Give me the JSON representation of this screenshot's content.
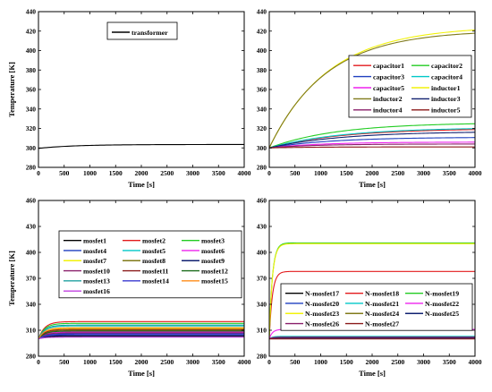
{
  "chart_data": [
    {
      "type": "line",
      "xlabel": "Time [s]",
      "ylabel": "Temperature [K]",
      "xlim": [
        0,
        4000
      ],
      "ylim": [
        280,
        440
      ],
      "xticks": [
        0,
        500,
        1000,
        1500,
        2000,
        2500,
        3000,
        3500,
        4000
      ],
      "yticks": [
        280,
        300,
        320,
        340,
        360,
        380,
        400,
        420,
        440
      ],
      "legend_position": "top-left",
      "legend_columns": 1,
      "series": [
        {
          "name": "transformer",
          "color": "#000000",
          "start": 299.5,
          "final": 303.5,
          "tau": 700
        }
      ]
    },
    {
      "type": "line",
      "xlabel": "Time [s]",
      "ylabel": "",
      "xlim": [
        0,
        4000
      ],
      "ylim": [
        280,
        440
      ],
      "xticks": [
        0,
        500,
        1000,
        1500,
        2000,
        2500,
        3000,
        3500,
        4000
      ],
      "yticks": [
        280,
        300,
        320,
        340,
        360,
        380,
        400,
        420,
        440
      ],
      "legend_position": "center-right",
      "legend_columns": 2,
      "series": [
        {
          "name": "capacitor1",
          "color": "#e31a1c",
          "start": 300,
          "final": 320,
          "tau": 1400
        },
        {
          "name": "capacitor2",
          "color": "#22cc22",
          "start": 300,
          "final": 326,
          "tau": 1300
        },
        {
          "name": "capacitor3",
          "color": "#1f3fbf",
          "start": 300,
          "final": 311,
          "tau": 1200
        },
        {
          "name": "capacitor4",
          "color": "#00c8c8",
          "start": 300,
          "final": 321,
          "tau": 1400
        },
        {
          "name": "capacitor5",
          "color": "#ee22ee",
          "start": 300,
          "final": 306,
          "tau": 1000
        },
        {
          "name": "inductor1",
          "color": "#f2f20a",
          "start": 300,
          "final": 425,
          "tau": 1150
        },
        {
          "name": "inductor2",
          "color": "#807a1a",
          "start": 300,
          "final": 421,
          "tau": 1100
        },
        {
          "name": "inductor3",
          "color": "#102070",
          "start": 300,
          "final": 317,
          "tau": 1400
        },
        {
          "name": "inductor4",
          "color": "#8a1f6a",
          "start": 300,
          "final": 304,
          "tau": 900
        },
        {
          "name": "inductor5",
          "color": "#8b1a1a",
          "start": 300,
          "final": 301,
          "tau": 800
        }
      ]
    },
    {
      "type": "line",
      "xlabel": "Time [s]",
      "ylabel": "Temperature [K]",
      "xlim": [
        0,
        4000
      ],
      "ylim": [
        280,
        460
      ],
      "xticks": [
        0,
        500,
        1000,
        1500,
        2000,
        2500,
        3000,
        3500,
        4000
      ],
      "yticks": [
        280,
        310,
        340,
        370,
        400,
        430,
        460
      ],
      "legend_position": "center-left",
      "legend_columns": 3,
      "series": [
        {
          "name": "mosfet1",
          "color": "#000000",
          "start": 300,
          "final": 303,
          "tau": 120
        },
        {
          "name": "mosfet2",
          "color": "#e31a1c",
          "start": 300,
          "final": 320,
          "tau": 120
        },
        {
          "name": "mosfet3",
          "color": "#22cc22",
          "start": 300,
          "final": 318,
          "tau": 120
        },
        {
          "name": "mosfet4",
          "color": "#1f3fbf",
          "start": 300,
          "final": 306,
          "tau": 120
        },
        {
          "name": "mosfet5",
          "color": "#00c8c8",
          "start": 300,
          "final": 315,
          "tau": 120
        },
        {
          "name": "mosfet6",
          "color": "#ee22ee",
          "start": 300,
          "final": 308,
          "tau": 120
        },
        {
          "name": "mosfet7",
          "color": "#f2f20a",
          "start": 300,
          "final": 312,
          "tau": 120
        },
        {
          "name": "mosfet8",
          "color": "#807a1a",
          "start": 300,
          "final": 310,
          "tau": 120
        },
        {
          "name": "mosfet9",
          "color": "#102070",
          "start": 300,
          "final": 304,
          "tau": 120
        },
        {
          "name": "mosfet10",
          "color": "#8a1f6a",
          "start": 300,
          "final": 307,
          "tau": 120
        },
        {
          "name": "mosfet11",
          "color": "#8b1a1a",
          "start": 300,
          "final": 311,
          "tau": 120
        },
        {
          "name": "mosfet12",
          "color": "#1a6b1a",
          "start": 300,
          "final": 309,
          "tau": 120
        },
        {
          "name": "mosfet13",
          "color": "#20a0a0",
          "start": 300,
          "final": 316,
          "tau": 120
        },
        {
          "name": "mosfet14",
          "color": "#3a3ad0",
          "start": 300,
          "final": 305,
          "tau": 120
        },
        {
          "name": "mosfet15",
          "color": "#ff8c1a",
          "start": 300,
          "final": 313,
          "tau": 120
        },
        {
          "name": "mosfet16",
          "color": "#c040e0",
          "start": 300,
          "final": 302,
          "tau": 120
        }
      ]
    },
    {
      "type": "line",
      "xlabel": "Time [s]",
      "ylabel": "",
      "xlim": [
        0,
        4000
      ],
      "ylim": [
        280,
        460
      ],
      "xticks": [
        0,
        500,
        1000,
        1500,
        2000,
        2500,
        3000,
        3500,
        4000
      ],
      "yticks": [
        280,
        310,
        340,
        370,
        400,
        430,
        460
      ],
      "legend_position": "center",
      "legend_columns": 3,
      "series": [
        {
          "name": "N-mosfet17",
          "color": "#000000",
          "start": 300,
          "final": 301,
          "tau": 60
        },
        {
          "name": "N-mosfet18",
          "color": "#e31a1c",
          "start": 300,
          "final": 378,
          "tau": 60
        },
        {
          "name": "N-mosfet19",
          "color": "#22cc22",
          "start": 300,
          "final": 411,
          "tau": 60
        },
        {
          "name": "N-mosfet20",
          "color": "#1f3fbf",
          "start": 300,
          "final": 302,
          "tau": 60
        },
        {
          "name": "N-mosfet21",
          "color": "#00c8c8",
          "start": 300,
          "final": 303,
          "tau": 60
        },
        {
          "name": "N-mosfet22",
          "color": "#ee22ee",
          "start": 300,
          "final": 311,
          "tau": 60
        },
        {
          "name": "N-mosfet23",
          "color": "#f2f20a",
          "start": 300,
          "final": 410,
          "tau": 60
        },
        {
          "name": "N-mosfet24",
          "color": "#807a1a",
          "start": 300,
          "final": 302,
          "tau": 60
        },
        {
          "name": "N-mosfet25",
          "color": "#102070",
          "start": 300,
          "final": 301,
          "tau": 60
        },
        {
          "name": "N-mosfet26",
          "color": "#8a1f6a",
          "start": 300,
          "final": 302,
          "tau": 60
        },
        {
          "name": "N-mosfet27",
          "color": "#8b1a1a",
          "start": 300,
          "final": 300,
          "tau": 60
        }
      ]
    }
  ]
}
